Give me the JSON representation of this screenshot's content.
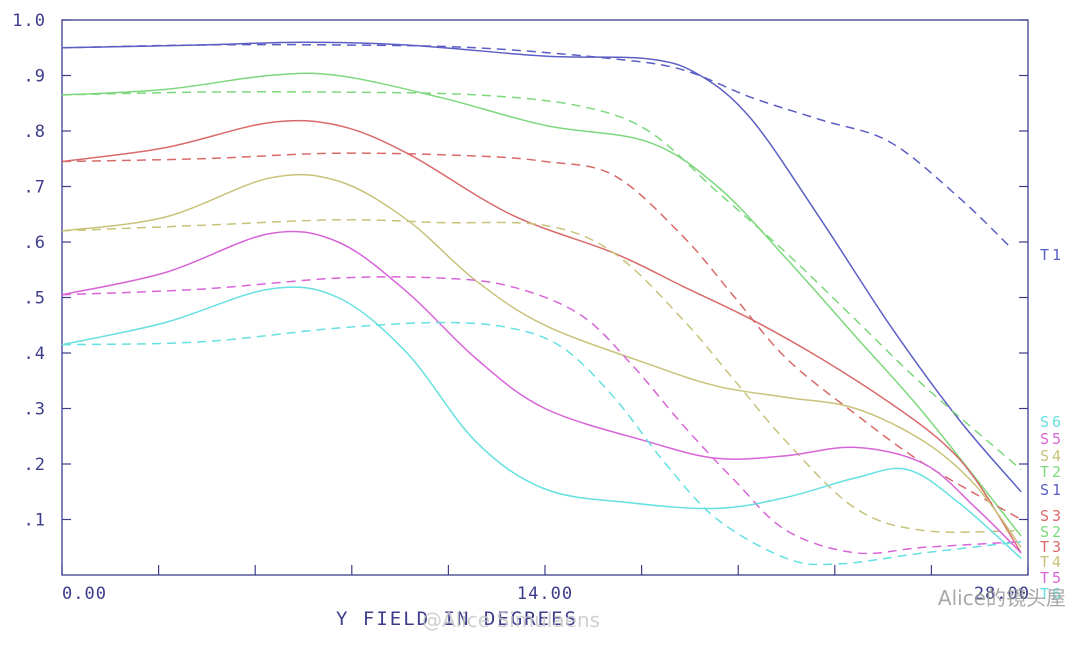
{
  "chart_data": {
    "type": "line",
    "title": "",
    "xlabel": "Y FIELD IN DEGREES",
    "ylabel": "",
    "xlim": [
      0,
      28
    ],
    "ylim": [
      0,
      1.0
    ],
    "x_tick_labels": [
      {
        "x": 0,
        "label": "0.00"
      },
      {
        "x": 14,
        "label": "14.00"
      },
      {
        "x": 28,
        "label": "28.00"
      }
    ],
    "x_minor_ticks": [
      2.8,
      5.6,
      8.4,
      11.2,
      16.8,
      19.6,
      22.4,
      25.2
    ],
    "y_tick_labels": [
      {
        "y": 1.0,
        "label": "1.0"
      },
      {
        "y": 0.9,
        "label": ".9"
      },
      {
        "y": 0.8,
        "label": ".8"
      },
      {
        "y": 0.7,
        "label": ".7"
      },
      {
        "y": 0.6,
        "label": ".6"
      },
      {
        "y": 0.5,
        "label": ".5"
      },
      {
        "y": 0.4,
        "label": ".4"
      },
      {
        "y": 0.3,
        "label": ".3"
      },
      {
        "y": 0.2,
        "label": ".2"
      },
      {
        "y": 0.1,
        "label": ".1"
      }
    ],
    "grid": false,
    "series": [
      {
        "name": "T1",
        "style": "dashed",
        "color": "#5b5fc4",
        "x": [
          0,
          4,
          8,
          12,
          16,
          18,
          20,
          22,
          24,
          26,
          27.5
        ],
        "y": [
          0.95,
          0.955,
          0.955,
          0.95,
          0.93,
          0.91,
          0.86,
          0.82,
          0.78,
          0.68,
          0.59
        ]
      },
      {
        "name": "S1",
        "style": "solid",
        "color": "#5b5fc4",
        "x": [
          0,
          4,
          7,
          10,
          14,
          17,
          18.5,
          20,
          22,
          24,
          26,
          27.8
        ],
        "y": [
          0.95,
          0.955,
          0.96,
          0.955,
          0.935,
          0.93,
          0.9,
          0.82,
          0.64,
          0.45,
          0.28,
          0.15
        ]
      },
      {
        "name": "T2",
        "style": "dashed",
        "color": "#7dd87d",
        "x": [
          0,
          4,
          8,
          12,
          15,
          17,
          19,
          21,
          23,
          25,
          27.8
        ],
        "y": [
          0.865,
          0.87,
          0.87,
          0.865,
          0.845,
          0.8,
          0.69,
          0.58,
          0.46,
          0.34,
          0.19
        ]
      },
      {
        "name": "S2",
        "style": "solid",
        "color": "#7dd87d",
        "x": [
          0,
          3,
          6,
          8,
          11,
          14,
          17,
          19,
          21,
          23,
          25,
          27.8
        ],
        "y": [
          0.865,
          0.875,
          0.9,
          0.9,
          0.86,
          0.81,
          0.78,
          0.7,
          0.57,
          0.43,
          0.29,
          0.07
        ]
      },
      {
        "name": "T3",
        "style": "dashed",
        "color": "#d96a6a",
        "x": [
          0,
          4,
          8,
          12,
          14,
          16,
          18,
          19.5,
          21,
          23,
          25,
          27.8
        ],
        "y": [
          0.745,
          0.75,
          0.76,
          0.755,
          0.745,
          0.72,
          0.61,
          0.5,
          0.39,
          0.29,
          0.2,
          0.1
        ]
      },
      {
        "name": "S3",
        "style": "solid",
        "color": "#d96a6a",
        "x": [
          0,
          3,
          6,
          8,
          10,
          13,
          16,
          18,
          20,
          22,
          24,
          25.5,
          26.5,
          27.8
        ],
        "y": [
          0.745,
          0.77,
          0.815,
          0.81,
          0.76,
          0.65,
          0.58,
          0.52,
          0.46,
          0.39,
          0.31,
          0.24,
          0.17,
          0.04
        ]
      },
      {
        "name": "T4",
        "style": "dashed",
        "color": "#c9c27a",
        "x": [
          0,
          4,
          8,
          11,
          14,
          16,
          18,
          19.5,
          21,
          23,
          25,
          27.8
        ],
        "y": [
          0.62,
          0.63,
          0.64,
          0.635,
          0.63,
          0.58,
          0.46,
          0.35,
          0.24,
          0.12,
          0.08,
          0.08
        ]
      },
      {
        "name": "S4",
        "style": "solid",
        "color": "#c9c27a",
        "x": [
          0,
          3,
          6,
          8,
          10,
          12,
          14,
          17,
          19,
          21,
          23,
          25,
          26.5,
          27.8
        ],
        "y": [
          0.62,
          0.645,
          0.715,
          0.71,
          0.64,
          0.53,
          0.45,
          0.38,
          0.34,
          0.32,
          0.3,
          0.24,
          0.16,
          0.05
        ]
      },
      {
        "name": "T5",
        "style": "dashed",
        "color": "#d865d8",
        "x": [
          0,
          4,
          8,
          11,
          13,
          15,
          16.5,
          18,
          19.5,
          21,
          23,
          25,
          27.8
        ],
        "y": [
          0.505,
          0.515,
          0.535,
          0.535,
          0.52,
          0.47,
          0.38,
          0.27,
          0.17,
          0.08,
          0.04,
          0.05,
          0.06
        ]
      },
      {
        "name": "S5",
        "style": "solid",
        "color": "#d865d8",
        "x": [
          0,
          3,
          6,
          8,
          10,
          12,
          14,
          17,
          19,
          21,
          23,
          25,
          26.5,
          27.8
        ],
        "y": [
          0.505,
          0.545,
          0.615,
          0.6,
          0.51,
          0.39,
          0.3,
          0.24,
          0.21,
          0.215,
          0.23,
          0.2,
          0.12,
          0.04
        ]
      },
      {
        "name": "T6",
        "style": "dashed",
        "color": "#66e0e0",
        "x": [
          0,
          4,
          8,
          11,
          13,
          14.5,
          16,
          17.5,
          19,
          21,
          22.5,
          25,
          27.8
        ],
        "y": [
          0.415,
          0.42,
          0.445,
          0.455,
          0.445,
          0.41,
          0.32,
          0.2,
          0.1,
          0.03,
          0.02,
          0.04,
          0.06
        ]
      },
      {
        "name": "S6",
        "style": "solid",
        "color": "#66e0e0",
        "x": [
          0,
          3,
          6,
          8,
          10,
          12,
          14,
          16.5,
          19,
          21,
          23,
          24.5,
          26,
          27.8
        ],
        "y": [
          0.415,
          0.455,
          0.515,
          0.5,
          0.4,
          0.24,
          0.155,
          0.13,
          0.12,
          0.14,
          0.175,
          0.19,
          0.13,
          0.03
        ]
      }
    ],
    "legend_placement": "right",
    "legend": [
      {
        "label": "T1",
        "color": "#5b5fc4"
      },
      {
        "label": "S6",
        "color": "#66e0e0"
      },
      {
        "label": "S5",
        "color": "#d865d8"
      },
      {
        "label": "S4",
        "color": "#c9c27a"
      },
      {
        "label": "T2",
        "color": "#7dd87d"
      },
      {
        "label": "S1",
        "color": "#5b5fc4"
      },
      {
        "label": "S3",
        "color": "#d96a6a"
      },
      {
        "label": "S2",
        "color": "#7dd87d"
      },
      {
        "label": "T3",
        "color": "#d96a6a"
      },
      {
        "label": "T4",
        "color": "#c9c27a"
      },
      {
        "label": "T5",
        "color": "#d865d8"
      },
      {
        "label": "T6",
        "color": "#66e0e0"
      }
    ],
    "axis_color": "#3d3d8c",
    "text_color": "#3d3d8c"
  },
  "watermarks": {
    "right": "Alice的镜头屋",
    "center": "@Alice Simulaens"
  }
}
